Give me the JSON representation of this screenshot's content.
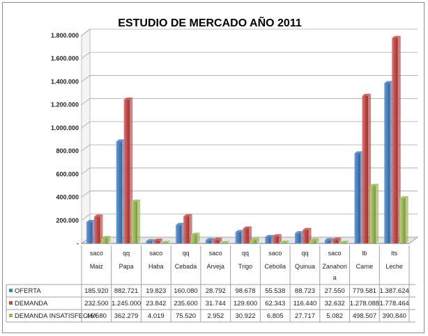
{
  "chart_data": {
    "type": "bar",
    "title": "ESTUDIO DE MERCADO AÑO 2011",
    "xlabel": "",
    "ylabel": "",
    "ylim": [
      0,
      1800000
    ],
    "yticks": [
      "-",
      "200.000",
      "400.000",
      "600.000",
      "800.000",
      "1.000.000",
      "1.200.000",
      "1.400.000",
      "1.600.000",
      "1.800.000"
    ],
    "grid": true,
    "legend": "table-left",
    "units": [
      "saco",
      "qq",
      "saco",
      "qq",
      "saco",
      "qq",
      "saco",
      "qq",
      "saco",
      "lb",
      "lts"
    ],
    "categories": [
      "Maiz",
      "Papa",
      "Haba",
      "Cebada",
      "Arveja",
      "Trigo",
      "Cebolla",
      "Quinua",
      "Zanahori a",
      "Carne",
      "Leche"
    ],
    "category_lines": [
      [
        "Maiz"
      ],
      [
        "Papa"
      ],
      [
        "Haba"
      ],
      [
        "Cebada"
      ],
      [
        "Arveja"
      ],
      [
        "Trigo"
      ],
      [
        "Cebolla"
      ],
      [
        "Quinua"
      ],
      [
        "Zanahori",
        "a"
      ],
      [
        "Carne"
      ],
      [
        "Leche"
      ]
    ],
    "series": [
      {
        "name": "OFERTA",
        "color": "#4a7ebb",
        "values": [
          185920,
          882721,
          19823,
          160080,
          28792,
          98678,
          55538,
          88723,
          27550,
          779581,
          1387624
        ],
        "labels": [
          "185.920",
          "882.721",
          "19.823",
          "160.080",
          "28.792",
          "98.678",
          "55.538",
          "88.723",
          "27.550",
          "779.581",
          "1.387.624"
        ]
      },
      {
        "name": "DEMANDA",
        "color": "#be4b48",
        "values": [
          232500,
          1245000,
          23842,
          235600,
          31744,
          129600,
          62343,
          116440,
          32632,
          1278088,
          1778464
        ],
        "labels": [
          "232.500",
          "1.245.000",
          "23.842",
          "235.600",
          "31.744",
          "129.600",
          "62.343",
          "116.440",
          "32.632",
          "1.278.088",
          "1.778.464"
        ]
      },
      {
        "name": "DEMANDA INSATISFECHA",
        "color": "#98b954",
        "values": [
          46580,
          362279,
          4019,
          75520,
          2952,
          30922,
          6805,
          27717,
          5082,
          498507,
          390840
        ],
        "labels": [
          "46.580",
          "362.279",
          "4.019",
          "75.520",
          "2.952",
          "30.922",
          "6.805",
          "27.717",
          "5.082",
          "498.507",
          "390.840"
        ]
      }
    ]
  }
}
